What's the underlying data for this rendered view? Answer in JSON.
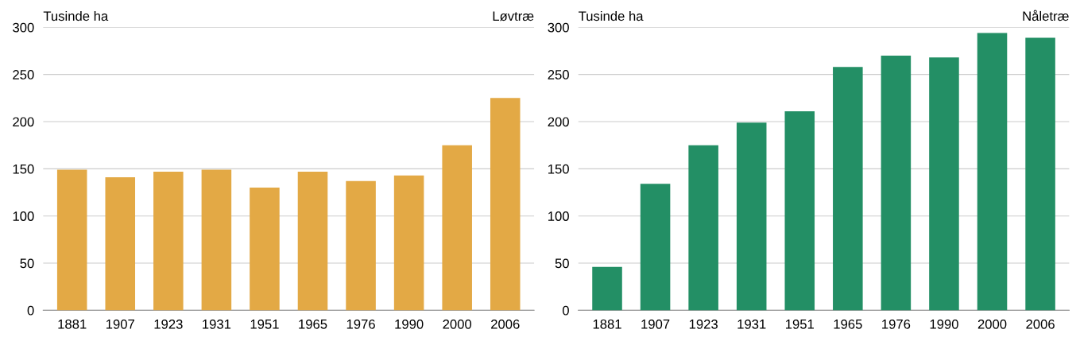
{
  "chart_data": [
    {
      "type": "bar",
      "title": "Løvtræ",
      "ylabel": "Tusinde ha",
      "categories": [
        "1881",
        "1907",
        "1923",
        "1931",
        "1951",
        "1965",
        "1976",
        "1990",
        "2000",
        "2006"
      ],
      "values": [
        149,
        141,
        147,
        149,
        130,
        147,
        137,
        143,
        175,
        225
      ],
      "color": "#e3a945",
      "ylim": [
        0,
        300
      ],
      "yticks": [
        0,
        50,
        100,
        150,
        200,
        250,
        300
      ],
      "grid": "y"
    },
    {
      "type": "bar",
      "title": "Nåletræ",
      "ylabel": "Tusinde ha",
      "categories": [
        "1881",
        "1907",
        "1923",
        "1931",
        "1951",
        "1965",
        "1976",
        "1990",
        "2000",
        "2006"
      ],
      "values": [
        46,
        134,
        175,
        199,
        211,
        258,
        270,
        268,
        294,
        289
      ],
      "color": "#238f65",
      "ylim": [
        0,
        300
      ],
      "yticks": [
        0,
        50,
        100,
        150,
        200,
        250,
        300
      ],
      "grid": "y"
    }
  ]
}
